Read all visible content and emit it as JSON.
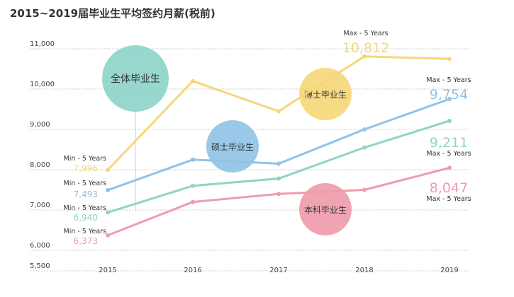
{
  "title": "2015~2019届毕业生平均签约月薪(税前)",
  "chart_data": {
    "type": "line",
    "x": [
      "2015",
      "2016",
      "2017",
      "2018",
      "2019"
    ],
    "y_ticks": [
      "5,500",
      "6,000",
      "7,000",
      "8,000",
      "9,000",
      "10,000",
      "11,000"
    ],
    "ylim": [
      5500,
      11300
    ],
    "grid": true,
    "series": [
      {
        "name": "全体毕业生",
        "color": "#8fd4c9",
        "values": [
          6940,
          7600,
          7780,
          8550,
          9211
        ],
        "show_start": "6,940",
        "show_end": "9,211",
        "start_label": "Min - 5 Years",
        "end_label": "Max - 5 Years"
      },
      {
        "name": "硕士毕业生",
        "color": "#93c2e6",
        "values": [
          7493,
          8250,
          8150,
          9000,
          9754
        ],
        "show_start": "7,493",
        "show_end": "9,754",
        "start_label": "Min - 5 Years",
        "end_label": "Max - 5 Years"
      },
      {
        "name": "博士毕业生",
        "color": "#f5d77a",
        "values": [
          7996,
          10200,
          9450,
          10812,
          10750
        ],
        "show_start": "7,996",
        "show_end": "10,812",
        "start_label": "Min - 5 Years",
        "end_label": "Max - 5 Years"
      },
      {
        "name": "本科毕业生",
        "color": "#ef9cab",
        "values": [
          6373,
          7200,
          7400,
          7500,
          8047
        ],
        "show_start": "6,373",
        "show_end": "8,047",
        "start_label": "Min - 5 Years",
        "end_label": "Max - 5 Years"
      }
    ]
  }
}
